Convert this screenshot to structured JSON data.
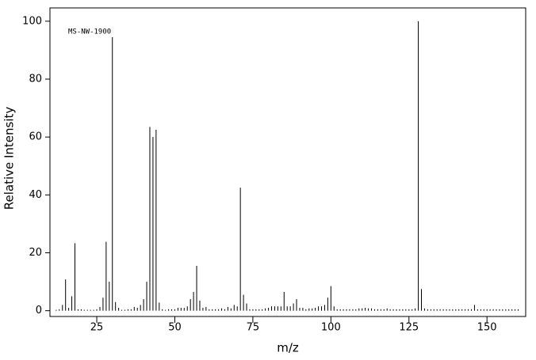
{
  "chart_data": {
    "type": "stem",
    "annotation": "MS-NW-1900",
    "x_label": "m/z",
    "y_label": "Relative Intensity",
    "color": "#000000",
    "xlim": [
      10,
      162.4
    ],
    "ylim": [
      -2,
      104.6
    ],
    "xticks": [
      25,
      50,
      75,
      100,
      125,
      150
    ],
    "yticks": [
      0,
      20,
      40,
      60,
      80,
      100
    ],
    "x": [
      12,
      13,
      14,
      15,
      16,
      17,
      18,
      19,
      20,
      21,
      22,
      23,
      24,
      25,
      26,
      27,
      28,
      29,
      30,
      31,
      32,
      33,
      34,
      35,
      36,
      37,
      38,
      39,
      40,
      41,
      42,
      43,
      44,
      45,
      46,
      47,
      48,
      49,
      50,
      51,
      52,
      53,
      54,
      55,
      56,
      57,
      58,
      59,
      60,
      61,
      62,
      63,
      64,
      65,
      66,
      67,
      68,
      69,
      70,
      71,
      72,
      73,
      74,
      75,
      76,
      77,
      78,
      79,
      80,
      81,
      82,
      83,
      84,
      85,
      86,
      87,
      88,
      89,
      90,
      91,
      92,
      93,
      94,
      95,
      96,
      97,
      98,
      99,
      100,
      101,
      102,
      103,
      104,
      105,
      106,
      107,
      108,
      109,
      110,
      111,
      112,
      113,
      114,
      115,
      116,
      117,
      118,
      119,
      120,
      121,
      122,
      123,
      124,
      125,
      126,
      127,
      128,
      129,
      130,
      131,
      132,
      133,
      134,
      135,
      136,
      137,
      138,
      139,
      140,
      141,
      142,
      143,
      144,
      145,
      146,
      147,
      148,
      149,
      150,
      151,
      152,
      153,
      154,
      155,
      156,
      157,
      158,
      159,
      160
    ],
    "values": [
      0.3,
      0.5,
      2,
      10.8,
      1,
      5,
      23.3,
      0.5,
      0.5,
      0.3,
      0.3,
      0.3,
      0.3,
      0.5,
      1.3,
      4.5,
      23.8,
      10,
      94.5,
      3,
      1,
      0.3,
      0.3,
      0.5,
      0.5,
      1.3,
      1,
      2,
      4,
      10,
      63.5,
      60,
      62.5,
      2.8,
      0.5,
      0.3,
      0.5,
      0.5,
      0.5,
      1,
      1,
      1,
      1.5,
      4,
      6.5,
      15.5,
      3.5,
      1,
      1.3,
      0.5,
      0.5,
      0.5,
      0.5,
      0.8,
      0.5,
      1.3,
      0.8,
      2,
      1.5,
      42.5,
      5.5,
      2.5,
      0.5,
      0.5,
      0.5,
      0.5,
      0.5,
      0.8,
      1,
      1.5,
      1.5,
      1.5,
      1.5,
      6.5,
      1.5,
      1.5,
      2.5,
      4,
      1,
      1,
      0.5,
      0.8,
      0.8,
      1,
      1.5,
      1.5,
      2,
      4.5,
      8.5,
      1.5,
      0.5,
      0.5,
      0.5,
      0.5,
      0.5,
      0.5,
      0.5,
      0.8,
      0.8,
      1,
      0.8,
      0.8,
      0.5,
      0.5,
      0.5,
      0.5,
      0.8,
      0.5,
      0.5,
      0.5,
      0.5,
      0.5,
      0.5,
      0.5,
      0.5,
      0.8,
      100,
      7.5,
      0.8,
      0.5,
      0.5,
      0.5,
      0.5,
      0.5,
      0.5,
      0.5,
      0.5,
      0.5,
      0.5,
      0.5,
      0.5,
      0.5,
      0.5,
      0.5,
      2,
      0.5,
      0.5,
      0.5,
      0.5,
      0.5,
      0.5,
      0.5,
      0.5,
      0.5,
      0.5,
      0.5,
      0.5,
      0.5,
      0.5
    ]
  }
}
